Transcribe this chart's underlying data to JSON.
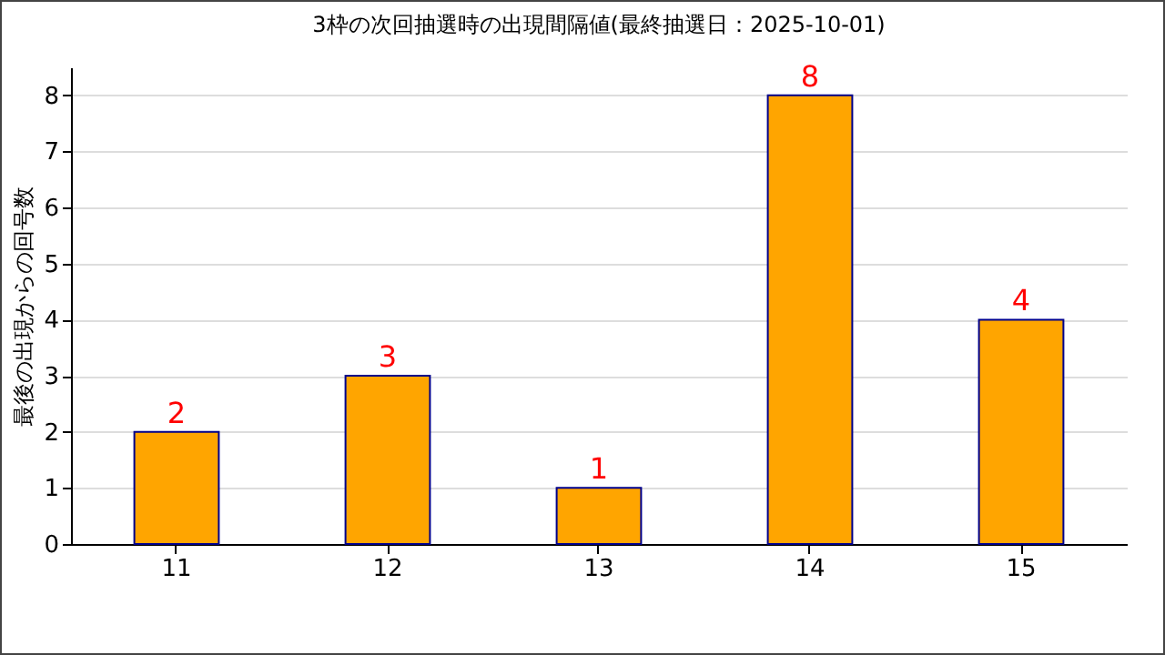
{
  "chart_data": {
    "type": "bar",
    "title": "3枠の次回抽選時の出現間隔値(最終抽選日：2025-10-01)",
    "ylabel": "最後の出現からの回号数",
    "categories": [
      "11",
      "12",
      "13",
      "14",
      "15"
    ],
    "values": [
      2,
      3,
      1,
      8,
      4
    ],
    "color": "#ffa500",
    "ylim": [
      0,
      8.5
    ],
    "yticks": [
      0,
      1,
      2,
      3,
      4,
      5,
      6,
      7,
      8
    ],
    "grid": "y",
    "data_labels": true
  }
}
